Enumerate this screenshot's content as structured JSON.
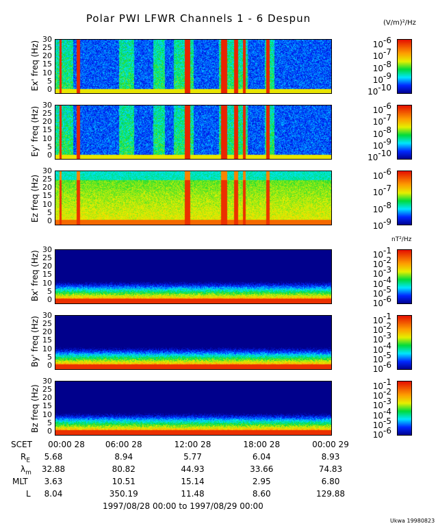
{
  "title": "Polar PWI LFWR Channels 1 - 6 Despun",
  "units": {
    "e": "(V/m)²/Hz",
    "b": "nT²/Hz"
  },
  "chart_data": {
    "type": "heatmap",
    "title": "Polar PWI LFWR Channels 1 - 6 Despun",
    "xrange_hours": [
      0,
      24
    ],
    "yticks": [
      "0",
      "5",
      "10",
      "15",
      "20",
      "25",
      "30"
    ],
    "ylim": [
      0,
      30
    ],
    "colormap": "rainbow",
    "panels": [
      {
        "ylabel": "Ex' freq (Hz)",
        "type": "e",
        "cbar": [
          "-6",
          "-7",
          "-8",
          "-9",
          "-10"
        ],
        "crange": [
          -10.5,
          -6
        ]
      },
      {
        "ylabel": "Ey' freq (Hz)",
        "type": "e",
        "cbar": [
          "-6",
          "-7",
          "-8",
          "-9",
          "-10"
        ],
        "crange": [
          -10.5,
          -6
        ]
      },
      {
        "ylabel": "Ez freq (Hz)",
        "type": "z",
        "cbar": [
          "-6",
          "-7",
          "-8",
          "-9"
        ],
        "crange": [
          -9.2,
          -6
        ]
      },
      {
        "ylabel": "Bx' freq (Hz)",
        "type": "b",
        "cbar": [
          "-1",
          "-2",
          "-3",
          "-4",
          "-5",
          "-6"
        ],
        "crange": [
          -6.5,
          -1
        ]
      },
      {
        "ylabel": "By' freq (Hz)",
        "type": "b",
        "cbar": [
          "-1",
          "-2",
          "-3",
          "-4",
          "-5",
          "-6"
        ],
        "crange": [
          -6.5,
          -1
        ]
      },
      {
        "ylabel": "Bz freq (Hz)",
        "type": "b",
        "cbar": [
          "-1",
          "-2",
          "-3",
          "-4",
          "-5",
          "-6"
        ],
        "crange": [
          -6.5,
          -1
        ]
      }
    ],
    "intense_intervals_hours": [
      [
        0.3,
        0.5
      ],
      [
        1.8,
        2.1
      ],
      [
        11.2,
        11.7
      ],
      [
        14.4,
        14.9
      ],
      [
        15.5,
        15.9
      ],
      [
        16.3,
        16.5
      ],
      [
        18.3,
        18.6
      ]
    ]
  },
  "axis": {
    "rows": [
      {
        "label": "SCET",
        "values": [
          "00:00 28",
          "06:00 28",
          "12:00 28",
          "18:00 28",
          "00:00 29"
        ]
      },
      {
        "label": "R",
        "sub": "E",
        "values": [
          "5.68",
          "8.94",
          "5.77",
          "6.04",
          "8.93"
        ]
      },
      {
        "label": "λ",
        "sub": "m",
        "values": [
          "32.88",
          "80.82",
          "44.93",
          "33.66",
          "74.83"
        ]
      },
      {
        "label": "MLT",
        "values": [
          "3.63",
          "10.51",
          "15.14",
          "2.95",
          "6.80"
        ]
      },
      {
        "label": "L",
        "values": [
          "8.04",
          "350.19",
          "11.48",
          "8.60",
          "129.88"
        ]
      }
    ],
    "range": "1997/08/28 00:00 to 1997/08/29 00:00"
  },
  "credit": "Ukwa 19980823"
}
